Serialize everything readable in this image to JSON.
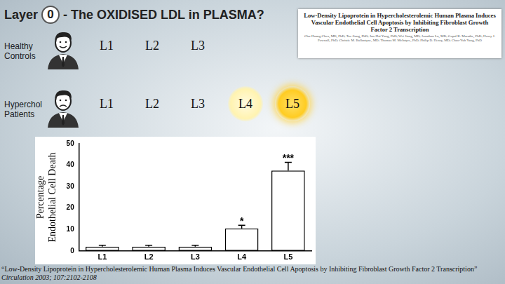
{
  "slide": {
    "title_prefix": "Layer",
    "layer_number": "0",
    "title": "- The OXIDISED LDL in PLASMA?",
    "groups": [
      {
        "label": "Healthy Controls",
        "fractions": [
          "L1",
          "L2",
          "L3"
        ]
      },
      {
        "label": "Hyperchol Patients",
        "fractions": [
          "L1",
          "L2",
          "L3",
          "L4",
          "L5"
        ]
      }
    ],
    "paper": {
      "title": "Low-Density Lipoprotein in Hypercholesterolemic Human Plasma Induces Vascular Endothelial Cell Apoptosis by Inhibiting Fibroblast Growth Factor 2 Transcription",
      "authors": "Chu-Huang Chen, MD, PhD; Tao Jiang, PhD; Jun-Hai Yang, PhD; Wei Jiang, MD; Jonathan Lu, MD; Gopal K. Marathe, PhD; Henry J. Pownall, PhD; Christie M. Ballantyne, MD; Thomas M. McIntyre, PhD; Philip D. Henry, MD; Chao-Yuh Yang, PhD"
    },
    "caption": [
      "“Low-Density Lipoprotein in Hypercholesterolemic Human Plasma Induces Vascular Endothelial Cell Apoptosis by Inhibiting Fibroblast Growth Factor 2 Transcription”",
      "Circulation 2003; 107:2102-2108"
    ]
  },
  "chart_data": {
    "type": "bar",
    "y_label": [
      "Percentage",
      "Endothelial Cell Death"
    ],
    "categories": [
      "L1",
      "L2",
      "L3",
      "L4",
      "L5"
    ],
    "values": [
      2,
      2,
      2,
      10.5,
      37.5
    ],
    "errors": [
      0.6,
      0.6,
      0.6,
      1.5,
      3.8
    ],
    "color": "#ffffff",
    "annotations": [
      {
        "category": "L4",
        "text": "*"
      },
      {
        "category": "L5",
        "text": "***"
      }
    ],
    "ylim": [
      0,
      50
    ],
    "yticks": [
      0,
      10,
      20,
      30,
      40,
      50
    ],
    "grid": false
  }
}
